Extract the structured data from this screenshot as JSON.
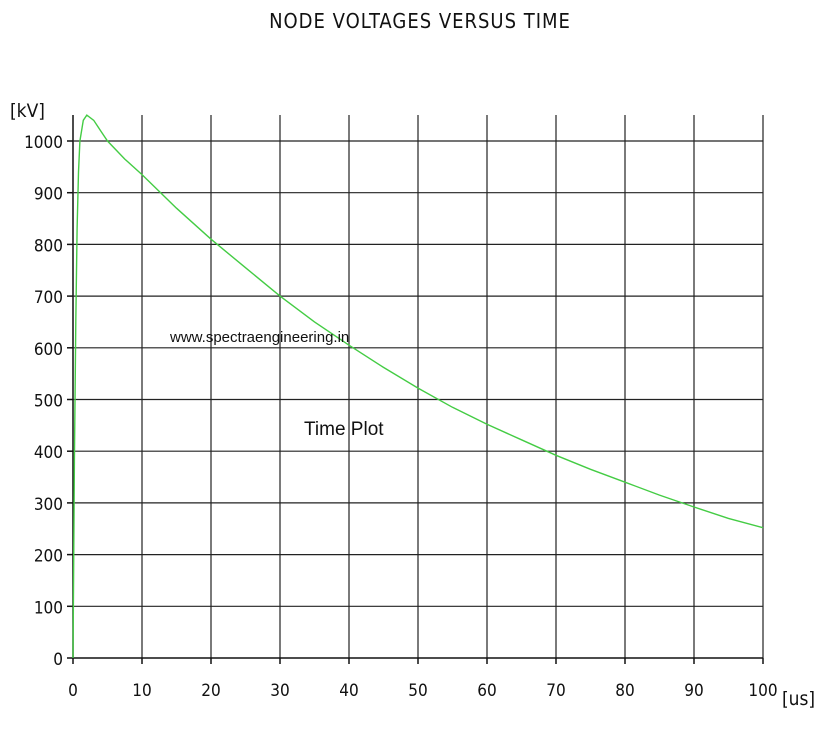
{
  "chart_data": {
    "type": "line",
    "title": "NODE VOLTAGES VERSUS TIME",
    "xunit": "[us]",
    "yunit": "[kV]",
    "xlim": [
      0,
      100
    ],
    "ylim": [
      0,
      1000
    ],
    "xticks": [
      0,
      10,
      20,
      30,
      40,
      50,
      60,
      70,
      80,
      90,
      100
    ],
    "yticks": [
      0,
      100,
      200,
      300,
      400,
      500,
      600,
      700,
      800,
      900,
      1000
    ],
    "grid": true,
    "annotations": [
      "www.spectraengineering.in",
      "Time Plot"
    ],
    "series": [
      {
        "color": "#44cc44",
        "x": [
          0,
          0.2,
          0.4,
          0.6,
          0.8,
          1,
          1.5,
          2,
          3,
          4,
          5,
          7.5,
          10,
          15,
          20,
          25,
          30,
          35,
          40,
          45,
          50,
          55,
          60,
          65,
          70,
          75,
          80,
          85,
          90,
          95,
          100
        ],
        "y": [
          0,
          380,
          650,
          830,
          940,
          1000,
          1040,
          1050,
          1040,
          1020,
          1000,
          965,
          935,
          870,
          810,
          755,
          700,
          650,
          605,
          562,
          522,
          485,
          452,
          422,
          392,
          365,
          340,
          315,
          292,
          270,
          252
        ]
      }
    ]
  }
}
